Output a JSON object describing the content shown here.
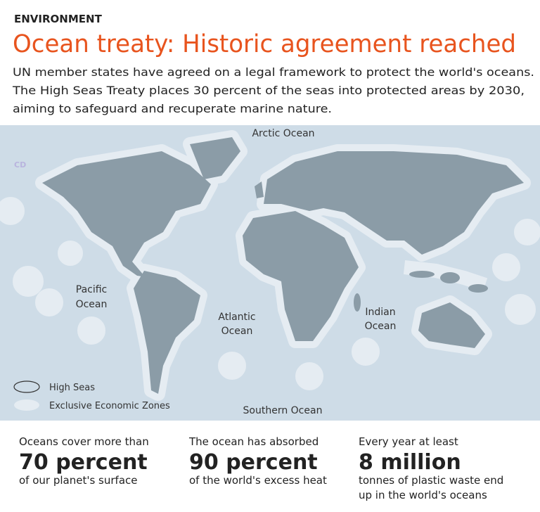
{
  "header": {
    "section": "ENVIRONMENT",
    "title": "Ocean treaty: Historic agreement reached",
    "subtitle": [
      "UN member states have agreed on a legal framework to protect the world's oceans.",
      "The High Seas Treaty places 30 percent of the seas into protected areas by 2030,",
      "aiming to safeguard and recuperate marine nature."
    ]
  },
  "map": {
    "watermark": "CD",
    "labels": [
      {
        "lines": [
          "Arctic Ocean"
        ]
      },
      {
        "lines": [
          "Pacific",
          "Ocean"
        ]
      },
      {
        "lines": [
          "Atlantic",
          "Ocean"
        ]
      },
      {
        "lines": [
          "Indian",
          "Ocean"
        ]
      },
      {
        "lines": [
          "Southern Ocean"
        ]
      }
    ],
    "legend": [
      "High Seas",
      "Exclusive Economic Zones"
    ]
  },
  "stats": [
    {
      "intro": "Oceans cover more than",
      "figure": "70 percent",
      "description": [
        "of our planet's surface"
      ]
    },
    {
      "intro": "The ocean has absorbed",
      "figure": "90 percent",
      "description": [
        "of the world's excess heat"
      ]
    },
    {
      "intro": "Every year at least",
      "figure": "8 million",
      "description": [
        "tonnes of plastic waste end",
        "up in the world's oceans"
      ]
    }
  ]
}
